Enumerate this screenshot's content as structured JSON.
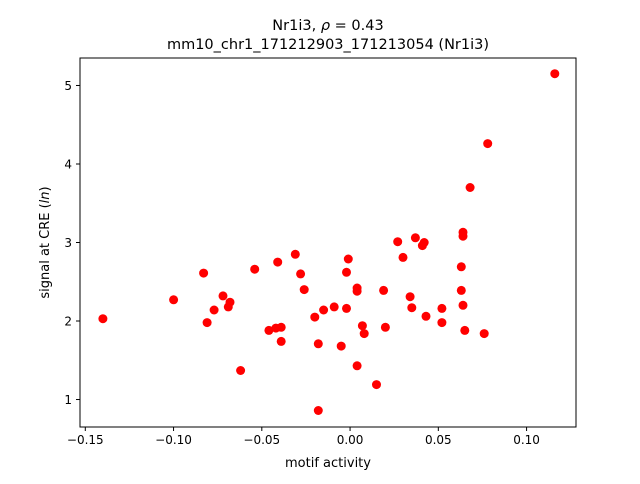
{
  "chart_data": {
    "type": "scatter",
    "title_line1_prefix": "Nr1i3, ",
    "title_rho_symbol": "ρ",
    "title_rho_value": " = 0.43",
    "title_line2": "mm10_chr1_171212903_171213054 (Nr1i3)",
    "xlabel": "motif activity",
    "ylabel_prefix": "signal at CRE (",
    "ylabel_italic": "ln",
    "ylabel_suffix": ")",
    "xlim": [
      -0.153,
      0.128
    ],
    "ylim": [
      0.65,
      5.35
    ],
    "xticks": [
      -0.15,
      -0.1,
      -0.05,
      0.0,
      0.05,
      0.1
    ],
    "xtick_labels": [
      "−0.15",
      "−0.10",
      "−0.05",
      "0.00",
      "0.05",
      "0.10"
    ],
    "yticks": [
      1,
      2,
      3,
      4,
      5
    ],
    "ytick_labels": [
      "1",
      "2",
      "3",
      "4",
      "5"
    ],
    "grid": false,
    "marker_color": "#ff0000",
    "points": [
      {
        "x": -0.14,
        "y": 2.03
      },
      {
        "x": -0.1,
        "y": 2.27
      },
      {
        "x": -0.083,
        "y": 2.61
      },
      {
        "x": -0.081,
        "y": 1.98
      },
      {
        "x": -0.077,
        "y": 2.14
      },
      {
        "x": -0.072,
        "y": 2.32
      },
      {
        "x": -0.069,
        "y": 2.18
      },
      {
        "x": -0.068,
        "y": 2.24
      },
      {
        "x": -0.062,
        "y": 1.37
      },
      {
        "x": -0.054,
        "y": 2.66
      },
      {
        "x": -0.046,
        "y": 1.88
      },
      {
        "x": -0.042,
        "y": 1.91
      },
      {
        "x": -0.041,
        "y": 2.75
      },
      {
        "x": -0.039,
        "y": 1.92
      },
      {
        "x": -0.039,
        "y": 1.74
      },
      {
        "x": -0.031,
        "y": 2.85
      },
      {
        "x": -0.028,
        "y": 2.6
      },
      {
        "x": -0.026,
        "y": 2.4
      },
      {
        "x": -0.02,
        "y": 2.05
      },
      {
        "x": -0.018,
        "y": 1.71
      },
      {
        "x": -0.015,
        "y": 2.14
      },
      {
        "x": -0.018,
        "y": 0.86
      },
      {
        "x": -0.009,
        "y": 2.18
      },
      {
        "x": -0.005,
        "y": 1.68
      },
      {
        "x": -0.002,
        "y": 2.16
      },
      {
        "x": -0.002,
        "y": 2.62
      },
      {
        "x": -0.001,
        "y": 2.79
      },
      {
        "x": 0.004,
        "y": 2.42
      },
      {
        "x": 0.004,
        "y": 2.38
      },
      {
        "x": 0.004,
        "y": 1.43
      },
      {
        "x": 0.007,
        "y": 1.94
      },
      {
        "x": 0.008,
        "y": 1.84
      },
      {
        "x": 0.015,
        "y": 1.19
      },
      {
        "x": 0.019,
        "y": 2.39
      },
      {
        "x": 0.02,
        "y": 1.92
      },
      {
        "x": 0.027,
        "y": 3.01
      },
      {
        "x": 0.03,
        "y": 2.81
      },
      {
        "x": 0.034,
        "y": 2.31
      },
      {
        "x": 0.035,
        "y": 2.17
      },
      {
        "x": 0.037,
        "y": 3.06
      },
      {
        "x": 0.041,
        "y": 2.96
      },
      {
        "x": 0.042,
        "y": 3.0
      },
      {
        "x": 0.043,
        "y": 2.06
      },
      {
        "x": 0.052,
        "y": 2.16
      },
      {
        "x": 0.052,
        "y": 1.98
      },
      {
        "x": 0.063,
        "y": 2.39
      },
      {
        "x": 0.063,
        "y": 2.69
      },
      {
        "x": 0.064,
        "y": 3.13
      },
      {
        "x": 0.064,
        "y": 3.08
      },
      {
        "x": 0.064,
        "y": 2.2
      },
      {
        "x": 0.065,
        "y": 1.88
      },
      {
        "x": 0.068,
        "y": 3.7
      },
      {
        "x": 0.076,
        "y": 1.84
      },
      {
        "x": 0.078,
        "y": 4.26
      },
      {
        "x": 0.116,
        "y": 5.15
      }
    ]
  }
}
